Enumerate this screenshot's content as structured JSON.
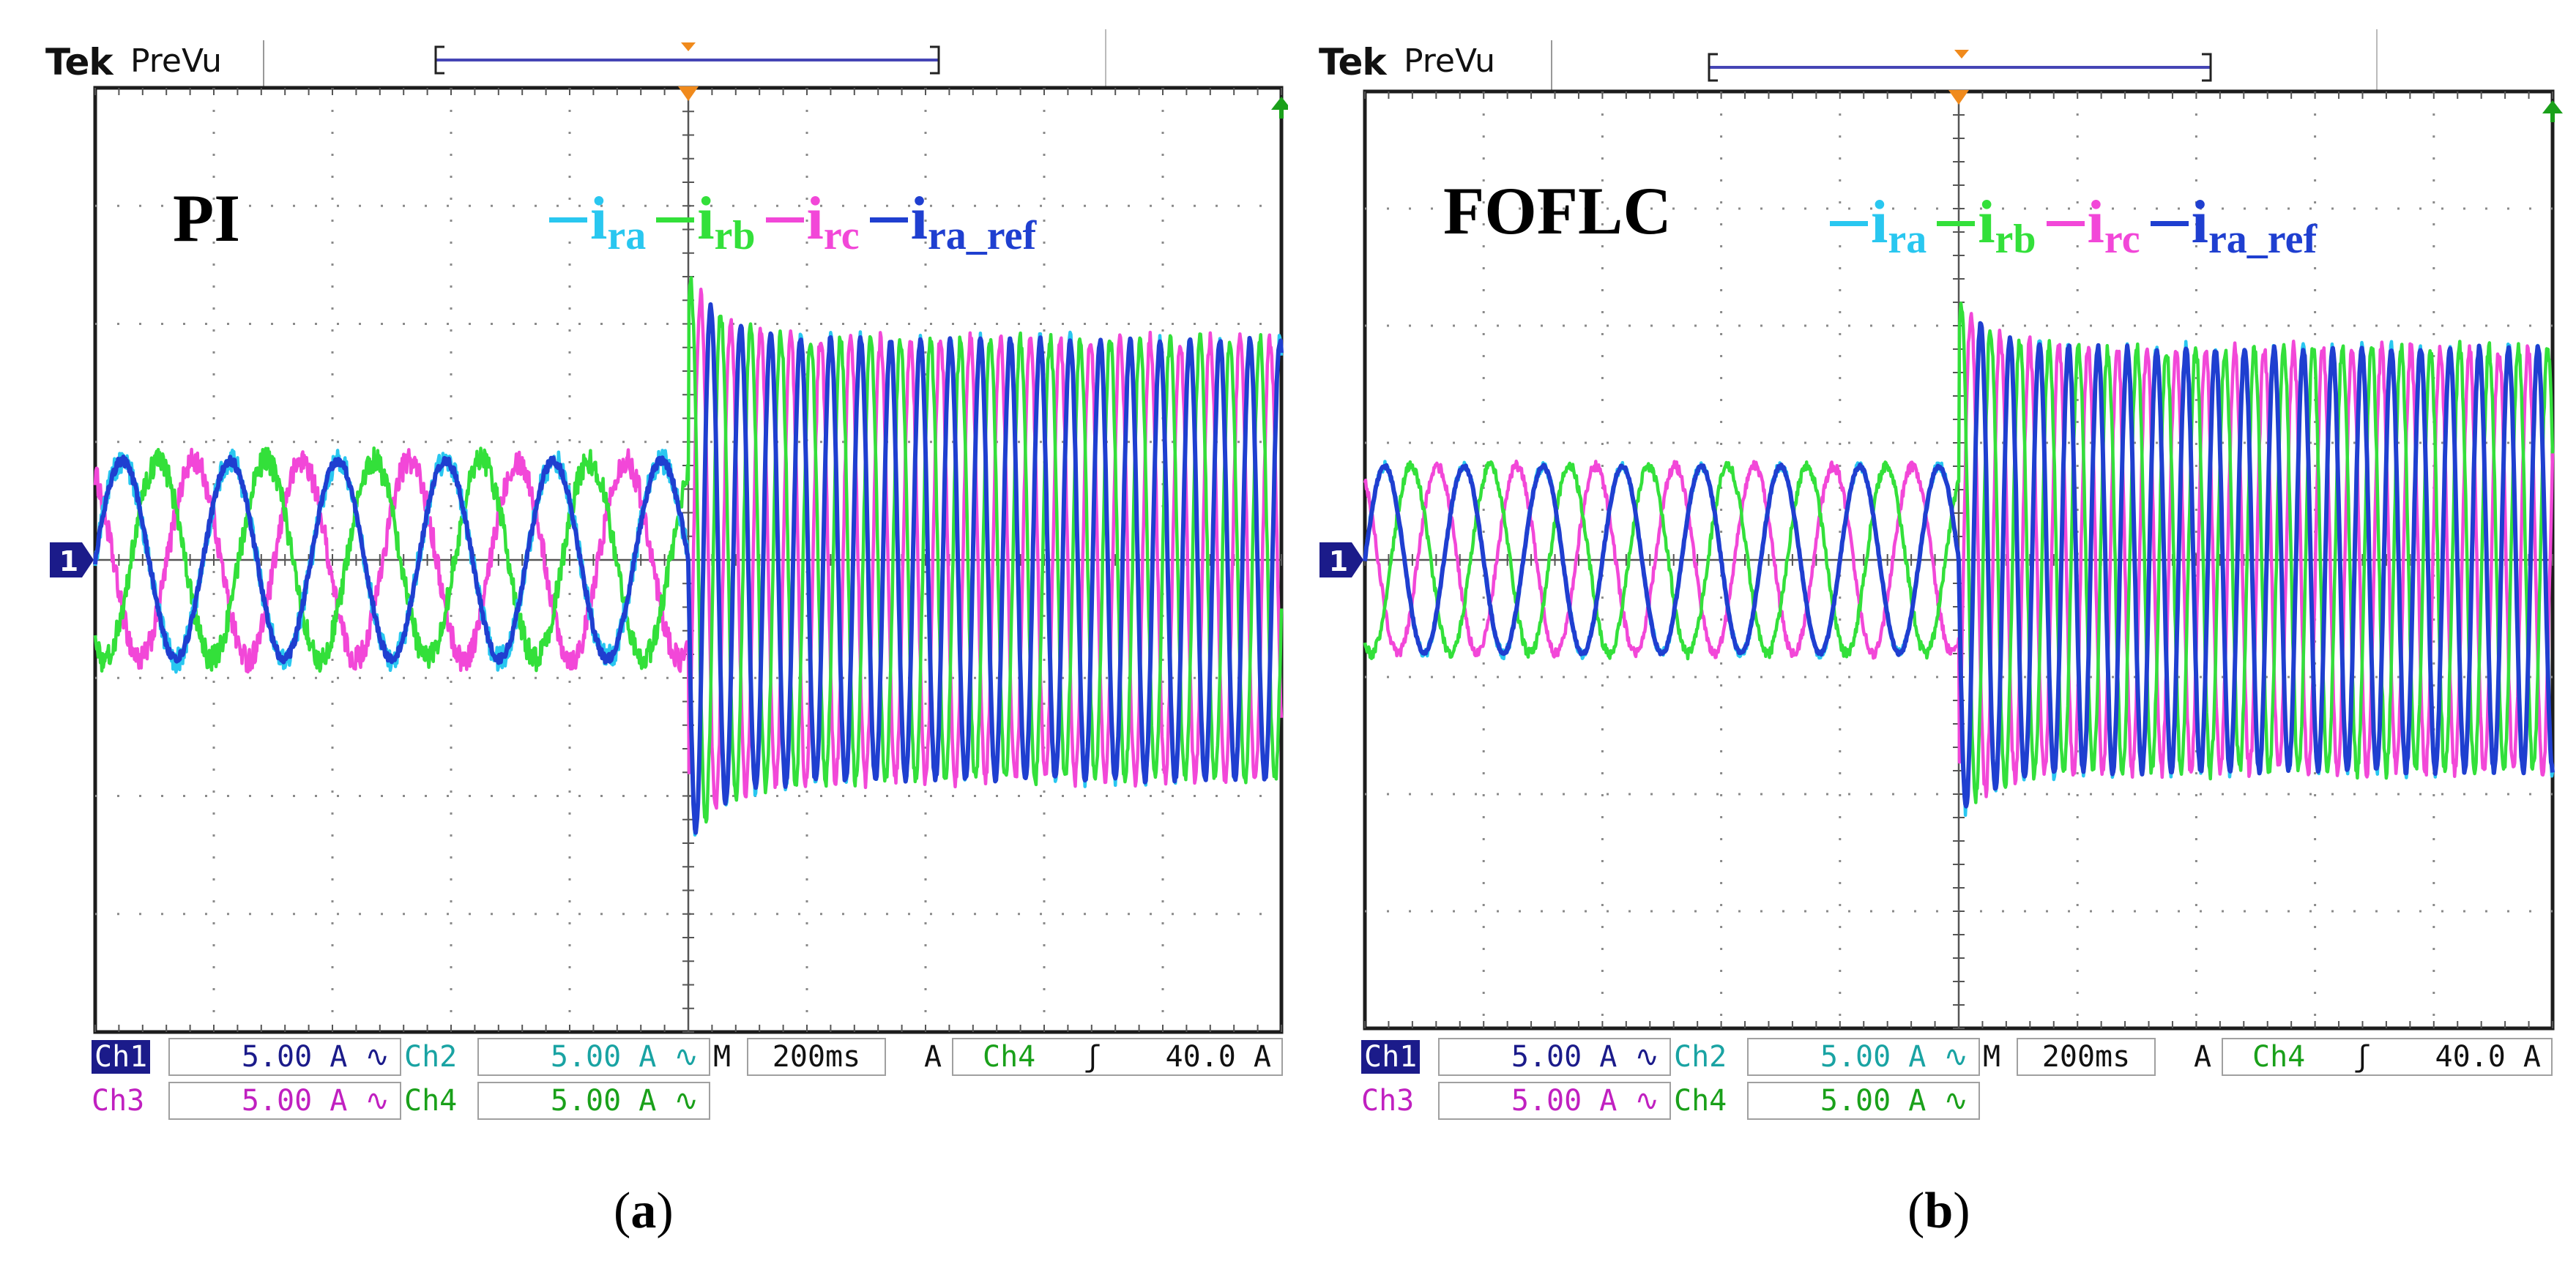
{
  "chart_data": [
    {
      "type": "line",
      "panel": "a",
      "caption_label": "a",
      "title": "PI",
      "scope_header": {
        "brand": "Tek",
        "mode": "PreVu"
      },
      "grid": {
        "divisions_x": 10,
        "divisions_y": 8,
        "on": true
      },
      "ylabel_marker": "1",
      "time_per_div": "200ms",
      "pre_step": {
        "amplitude_A": 4.2,
        "cycles": 5.5,
        "noise": "high"
      },
      "post_step": {
        "amplitude_A": 9.3,
        "frequency_ratio_to_pre": 3.6,
        "step_position_div": 5.0
      },
      "overshoot_A": 12.0,
      "series": [
        {
          "name": "i",
          "sub": "ra",
          "color": "#29c7f0",
          "phase_deg": 0
        },
        {
          "name": "i",
          "sub": "rb",
          "color": "#33e03a",
          "phase_deg": -120
        },
        {
          "name": "i",
          "sub": "rc",
          "color": "#f247d8",
          "phase_deg": 120
        },
        {
          "name": "i",
          "sub": "ra_ref",
          "color": "#1f3fd0",
          "phase_deg": 0
        }
      ],
      "channels": {
        "ch1": {
          "label": "Ch1",
          "value": "5.00 A",
          "coupling": "∿"
        },
        "ch2": {
          "label": "Ch2",
          "value": "5.00 A",
          "coupling": "∿"
        },
        "ch3": {
          "label": "Ch3",
          "value": "5.00 A",
          "coupling": "∿"
        },
        "ch4": {
          "label": "Ch4",
          "value": "5.00 A",
          "coupling": "∿"
        }
      },
      "timebase": {
        "m_label": "M",
        "value": "200ms"
      },
      "trigger": {
        "a_label": "A",
        "source": "Ch4",
        "slope": "ʃ",
        "level": "40.0 A"
      }
    },
    {
      "type": "line",
      "panel": "b",
      "caption_label": "b",
      "title": "FOFLC",
      "scope_header": {
        "brand": "Tek",
        "mode": "PreVu"
      },
      "grid": {
        "divisions_x": 10,
        "divisions_y": 8,
        "on": true
      },
      "ylabel_marker": "1",
      "time_per_div": "200ms",
      "pre_step": {
        "amplitude_A": 4.0,
        "cycles": 7.5,
        "noise": "low"
      },
      "post_step": {
        "amplitude_A": 9.0,
        "frequency_ratio_to_pre": 2.7,
        "step_position_div": 5.0
      },
      "overshoot_A": 11.0,
      "series": [
        {
          "name": "i",
          "sub": "ra",
          "color": "#29c7f0",
          "phase_deg": 0
        },
        {
          "name": "i",
          "sub": "rb",
          "color": "#33e03a",
          "phase_deg": -120
        },
        {
          "name": "i",
          "sub": "rc",
          "color": "#f247d8",
          "phase_deg": 120
        },
        {
          "name": "i",
          "sub": "ra_ref",
          "color": "#1f3fd0",
          "phase_deg": 0
        }
      ],
      "channels": {
        "ch1": {
          "label": "Ch1",
          "value": "5.00 A",
          "coupling": "∿"
        },
        "ch2": {
          "label": "Ch2",
          "value": "5.00 A",
          "coupling": "∿"
        },
        "ch3": {
          "label": "Ch3",
          "value": "5.00 A",
          "coupling": "∿"
        },
        "ch4": {
          "label": "Ch4",
          "value": "5.00 A",
          "coupling": "∿"
        }
      },
      "timebase": {
        "m_label": "M",
        "value": "200ms"
      },
      "trigger": {
        "a_label": "A",
        "source": "Ch4",
        "slope": "ʃ",
        "level": "40.0 A"
      }
    }
  ],
  "colors": {
    "grid_border": "#1c1c1c",
    "grid_dots": "#8a8a8a",
    "trigger_marker": "#f08a1c",
    "record_bar": "#4545b5",
    "ch1_marker": "#1b1b8a",
    "ch1_text": "#1b1b8a",
    "ch2_text": "#19a3a3",
    "ch3_text": "#c020c0",
    "ch4_text": "#1aa01a"
  }
}
